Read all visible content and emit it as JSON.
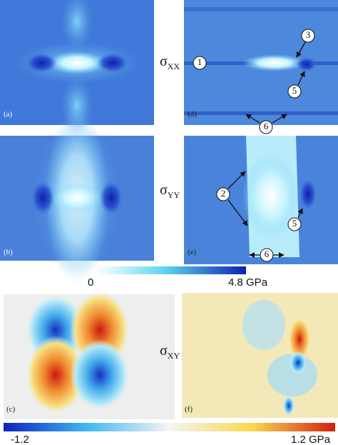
{
  "rows": [
    {
      "label": {
        "symbol": "σ",
        "subscript": "XX"
      },
      "left_panel": "(a)",
      "right_panel": "(d)",
      "annotations": [
        "1",
        "3",
        "5",
        "6"
      ]
    },
    {
      "label": {
        "symbol": "σ",
        "subscript": "YY"
      },
      "left_panel": "(b)",
      "right_panel": "(e)",
      "annotations": [
        "2",
        "5",
        "6"
      ]
    },
    {
      "label": {
        "symbol": "σ",
        "subscript": "XY"
      },
      "left_panel": "(c)",
      "right_panel": "(f)"
    }
  ],
  "colorbars": [
    {
      "min_label": "0",
      "max_label": "4.8 GPa"
    },
    {
      "min_label": "-1.2",
      "max_label": "1.2 GPa"
    }
  ]
}
